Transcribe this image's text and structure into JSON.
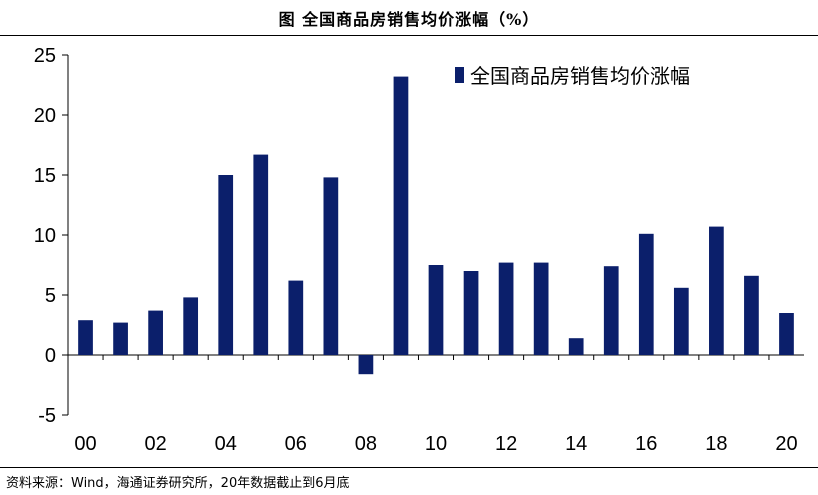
{
  "figure": {
    "title": "图  全国商品房销售均价涨幅（%）",
    "source": "资料来源：Wind，海通证券研究所，20年数据截止到6月底"
  },
  "colors": {
    "bar": "#0b1f6b",
    "axis": "#000000"
  },
  "chart_data": {
    "type": "bar",
    "x": [
      "00",
      "01",
      "02",
      "03",
      "04",
      "05",
      "06",
      "07",
      "08",
      "09",
      "10",
      "11",
      "12",
      "13",
      "14",
      "15",
      "16",
      "17",
      "18",
      "19",
      "20"
    ],
    "x_tick_labels": [
      "00",
      "02",
      "04",
      "06",
      "08",
      "10",
      "12",
      "14",
      "16",
      "18",
      "20"
    ],
    "series": [
      {
        "name": "全国商品房销售均价涨幅",
        "values": [
          2.9,
          2.7,
          3.7,
          4.8,
          15.0,
          16.7,
          6.2,
          14.8,
          -1.6,
          23.2,
          7.5,
          7.0,
          7.7,
          7.7,
          1.4,
          7.4,
          10.1,
          5.6,
          10.7,
          6.6,
          3.5
        ]
      }
    ],
    "ylim": [
      -5,
      25
    ],
    "yticks": [
      -5,
      0,
      5,
      10,
      15,
      20,
      25
    ],
    "legend_position": "top-right",
    "grid": false
  }
}
